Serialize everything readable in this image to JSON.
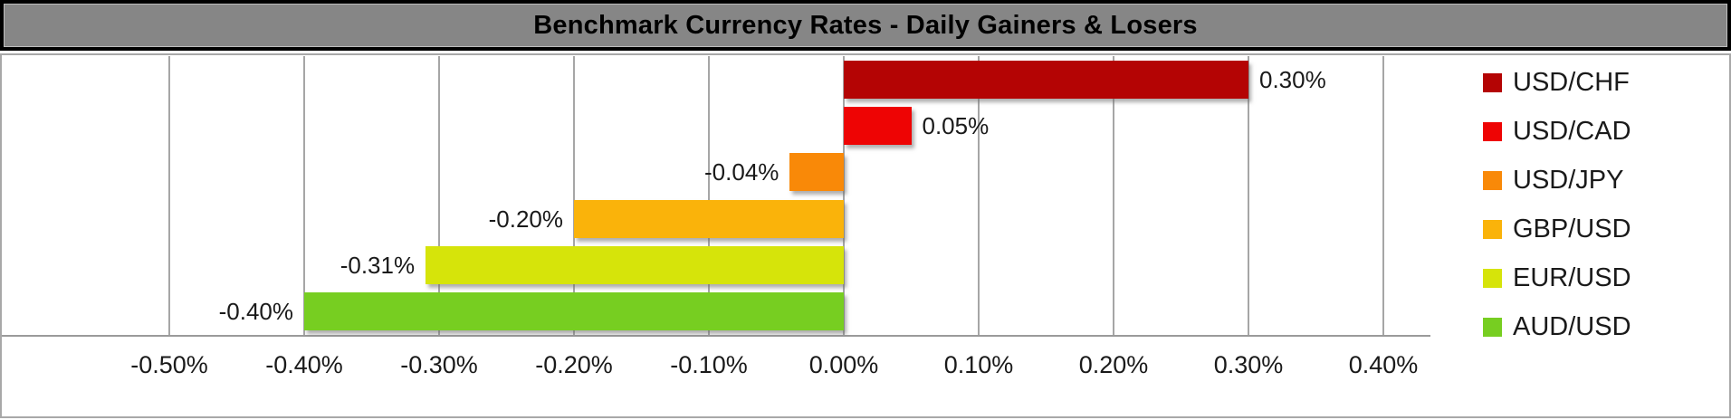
{
  "title": "Benchmark Currency Rates - Daily Gainers & Losers",
  "chart_data": {
    "type": "bar",
    "orientation": "horizontal",
    "title": "Benchmark Currency Rates - Daily Gainers & Losers",
    "categories": [
      "USD/CHF",
      "USD/CAD",
      "USD/JPY",
      "GBP/USD",
      "EUR/USD",
      "AUD/USD"
    ],
    "values": [
      0.3,
      0.05,
      -0.04,
      -0.2,
      -0.31,
      -0.4
    ],
    "data_labels": [
      "0.30%",
      "0.05%",
      "-0.04%",
      "-0.20%",
      "-0.31%",
      "-0.40%"
    ],
    "bar_colors": [
      "#b40404",
      "#ee0404",
      "#f98908",
      "#fab30a",
      "#d6e40a",
      "#77ce21"
    ],
    "x_tick_labels": [
      "-0.50%",
      "-0.40%",
      "-0.30%",
      "-0.20%",
      "-0.10%",
      "0.00%",
      "0.10%",
      "0.20%",
      "0.30%",
      "0.40%"
    ],
    "x_tick_values": [
      -0.5,
      -0.4,
      -0.3,
      -0.2,
      -0.1,
      0.0,
      0.1,
      0.2,
      0.3,
      0.4
    ],
    "xlim": [
      -0.625,
      0.433
    ],
    "grid": true,
    "legend_position": "right",
    "legend": [
      "USD/CHF",
      "USD/CAD",
      "USD/JPY",
      "GBP/USD",
      "EUR/USD",
      "AUD/USD"
    ]
  },
  "colors": {
    "title_bg": "#868686",
    "title_text": "#000000",
    "gridline": "#a6a6a6",
    "chart_border": "#a8a8a8",
    "frame_border": "#000000",
    "label_text": "#1a1a1a",
    "background": "#ffffff"
  }
}
